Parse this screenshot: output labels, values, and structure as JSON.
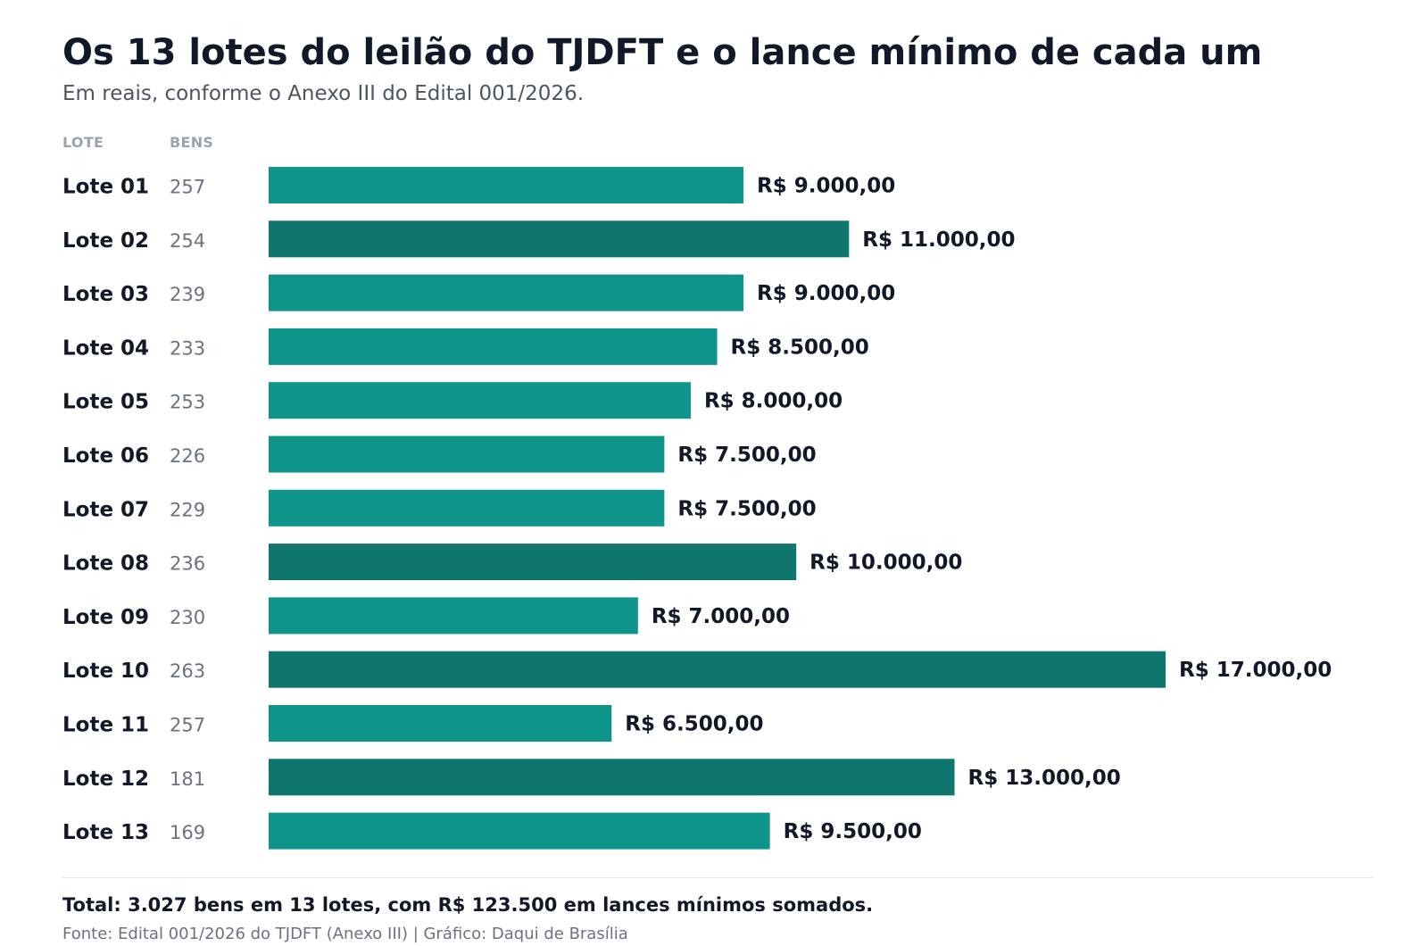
{
  "header": {
    "title": "Os 13 lotes do leilão do TJDFT e o lance mínimo de cada um",
    "subtitle": "Em reais, conforme o Anexo III do Edital 001/2026."
  },
  "columns": {
    "lote": "LOTE",
    "bens": "BENS"
  },
  "footer": {
    "total": "Total: 3.027 bens em 13 lotes, com R$ 123.500 em lances mínimos somados.",
    "source": "Fonte: Edital 001/2026 do TJDFT (Anexo III)  |  Gráfico: Daqui de Brasília"
  },
  "colors": {
    "bar_default": "#0e9488",
    "bar_highlight": "#0f766e",
    "label_text": "#111827",
    "bens_text": "#6b7280"
  },
  "chart_data": {
    "type": "bar",
    "orientation": "horizontal",
    "title": "Os 13 lotes do leilão do TJDFT e o lance mínimo de cada um",
    "subtitle": "Em reais, conforme o Anexo III do Edital 001/2026.",
    "categories": [
      "Lote 01",
      "Lote 02",
      "Lote 03",
      "Lote 04",
      "Lote 05",
      "Lote 06",
      "Lote 07",
      "Lote 08",
      "Lote 09",
      "Lote 10",
      "Lote 11",
      "Lote 12",
      "Lote 13"
    ],
    "bens": [
      257,
      254,
      239,
      233,
      253,
      226,
      229,
      236,
      230,
      263,
      257,
      181,
      169
    ],
    "values": [
      9000,
      11000,
      9000,
      8500,
      8000,
      7500,
      7500,
      10000,
      7000,
      17000,
      6500,
      13000,
      9500
    ],
    "value_labels": [
      "R$ 9.000,00",
      "R$ 11.000,00",
      "R$ 9.000,00",
      "R$ 8.500,00",
      "R$ 8.000,00",
      "R$ 7.500,00",
      "R$ 7.500,00",
      "R$ 10.000,00",
      "R$ 7.000,00",
      "R$ 17.000,00",
      "R$ 6.500,00",
      "R$ 13.000,00",
      "R$ 9.500,00"
    ],
    "highlighted": [
      false,
      true,
      false,
      false,
      false,
      false,
      false,
      true,
      false,
      true,
      false,
      true,
      false
    ],
    "xlim": [
      0,
      17000
    ],
    "grid": false,
    "legend": "none"
  }
}
